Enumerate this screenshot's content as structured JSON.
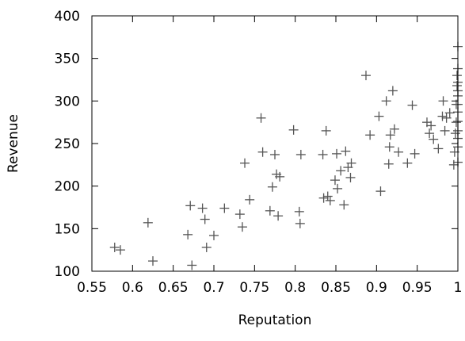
{
  "chart_data": {
    "type": "scatter",
    "title": "",
    "xlabel": "Reputation",
    "ylabel": "Revenue",
    "xlim": [
      0.55,
      1.0
    ],
    "ylim": [
      100,
      400
    ],
    "grid": false,
    "marker": "plus",
    "marker_color": "#555555",
    "x_ticks": [
      0.55,
      0.6,
      0.65,
      0.7,
      0.75,
      0.8,
      0.85,
      0.9,
      0.95,
      1.0
    ],
    "x_tick_labels": [
      "0.55",
      "0.6",
      "0.65",
      "0.7",
      "0.75",
      "0.8",
      "0.85",
      "0.9",
      "0.95",
      "1"
    ],
    "y_ticks": [
      100,
      150,
      200,
      250,
      300,
      350,
      400
    ],
    "y_tick_labels": [
      "100",
      "150",
      "200",
      "250",
      "300",
      "350",
      "400"
    ],
    "points": [
      {
        "x": 0.578,
        "y": 128
      },
      {
        "x": 0.585,
        "y": 125
      },
      {
        "x": 0.619,
        "y": 157
      },
      {
        "x": 0.625,
        "y": 112
      },
      {
        "x": 0.668,
        "y": 143
      },
      {
        "x": 0.671,
        "y": 177
      },
      {
        "x": 0.673,
        "y": 107
      },
      {
        "x": 0.686,
        "y": 174
      },
      {
        "x": 0.689,
        "y": 161
      },
      {
        "x": 0.691,
        "y": 128
      },
      {
        "x": 0.7,
        "y": 142
      },
      {
        "x": 0.713,
        "y": 174
      },
      {
        "x": 0.732,
        "y": 167
      },
      {
        "x": 0.735,
        "y": 152
      },
      {
        "x": 0.738,
        "y": 227
      },
      {
        "x": 0.744,
        "y": 184
      },
      {
        "x": 0.758,
        "y": 280
      },
      {
        "x": 0.76,
        "y": 240
      },
      {
        "x": 0.769,
        "y": 171
      },
      {
        "x": 0.772,
        "y": 199
      },
      {
        "x": 0.775,
        "y": 237
      },
      {
        "x": 0.777,
        "y": 214
      },
      {
        "x": 0.779,
        "y": 165
      },
      {
        "x": 0.781,
        "y": 211
      },
      {
        "x": 0.798,
        "y": 266
      },
      {
        "x": 0.805,
        "y": 170
      },
      {
        "x": 0.806,
        "y": 156
      },
      {
        "x": 0.807,
        "y": 237
      },
      {
        "x": 0.834,
        "y": 237
      },
      {
        "x": 0.835,
        "y": 186
      },
      {
        "x": 0.838,
        "y": 265
      },
      {
        "x": 0.84,
        "y": 188
      },
      {
        "x": 0.843,
        "y": 183
      },
      {
        "x": 0.849,
        "y": 207
      },
      {
        "x": 0.851,
        "y": 238
      },
      {
        "x": 0.852,
        "y": 197
      },
      {
        "x": 0.856,
        "y": 218
      },
      {
        "x": 0.86,
        "y": 178
      },
      {
        "x": 0.862,
        "y": 241
      },
      {
        "x": 0.865,
        "y": 222
      },
      {
        "x": 0.868,
        "y": 210
      },
      {
        "x": 0.869,
        "y": 227
      },
      {
        "x": 0.887,
        "y": 330
      },
      {
        "x": 0.892,
        "y": 260
      },
      {
        "x": 0.903,
        "y": 282
      },
      {
        "x": 0.905,
        "y": 194
      },
      {
        "x": 0.912,
        "y": 300
      },
      {
        "x": 0.915,
        "y": 226
      },
      {
        "x": 0.916,
        "y": 246
      },
      {
        "x": 0.917,
        "y": 260
      },
      {
        "x": 0.92,
        "y": 312
      },
      {
        "x": 0.922,
        "y": 267
      },
      {
        "x": 0.927,
        "y": 240
      },
      {
        "x": 0.938,
        "y": 227
      },
      {
        "x": 0.944,
        "y": 295
      },
      {
        "x": 0.947,
        "y": 238
      },
      {
        "x": 0.962,
        "y": 275
      },
      {
        "x": 0.965,
        "y": 262
      },
      {
        "x": 0.967,
        "y": 271
      },
      {
        "x": 0.97,
        "y": 255
      },
      {
        "x": 0.976,
        "y": 244
      },
      {
        "x": 0.981,
        "y": 282
      },
      {
        "x": 0.982,
        "y": 300
      },
      {
        "x": 0.984,
        "y": 265
      },
      {
        "x": 0.986,
        "y": 280
      },
      {
        "x": 0.99,
        "y": 286
      },
      {
        "x": 0.995,
        "y": 225
      },
      {
        "x": 0.996,
        "y": 240
      },
      {
        "x": 0.997,
        "y": 262
      },
      {
        "x": 0.998,
        "y": 275
      },
      {
        "x": 0.998,
        "y": 296
      },
      {
        "x": 0.999,
        "y": 318
      },
      {
        "x": 0.999,
        "y": 330
      },
      {
        "x": 1.0,
        "y": 364
      },
      {
        "x": 1.0,
        "y": 338
      },
      {
        "x": 1.0,
        "y": 322
      },
      {
        "x": 1.0,
        "y": 312
      },
      {
        "x": 1.0,
        "y": 306
      },
      {
        "x": 1.0,
        "y": 296
      },
      {
        "x": 1.0,
        "y": 287
      },
      {
        "x": 1.0,
        "y": 276
      },
      {
        "x": 1.0,
        "y": 265
      },
      {
        "x": 1.0,
        "y": 256
      },
      {
        "x": 1.0,
        "y": 246
      },
      {
        "x": 1.0,
        "y": 228
      }
    ]
  }
}
